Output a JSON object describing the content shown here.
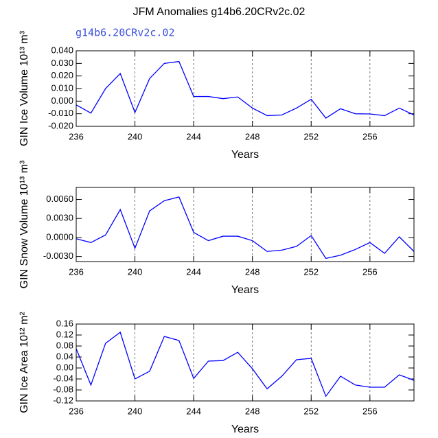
{
  "chart_data": [
    {
      "type": "line",
      "title": "JFM Anomalies g14b6.20CRv2c.02",
      "subtitle": "g14b6.20CRv2c.02",
      "xlabel": "Years",
      "ylabel": "GIN Ice Volume 10¹³ m³",
      "color": "#0000ff",
      "vgrid": true,
      "x": [
        236,
        237,
        238,
        239,
        240,
        241,
        242,
        243,
        244,
        245,
        246,
        247,
        248,
        249,
        250,
        251,
        252,
        253,
        254,
        255,
        256,
        257,
        258,
        259
      ],
      "values": [
        -0.003,
        -0.0095,
        0.01,
        0.022,
        -0.009,
        0.018,
        0.03,
        0.0315,
        0.0037,
        0.0037,
        0.002,
        0.0033,
        -0.0055,
        -0.0115,
        -0.011,
        -0.0055,
        0.0015,
        -0.0135,
        -0.006,
        -0.01,
        -0.0102,
        -0.0115,
        -0.0055,
        -0.011
      ],
      "xlim": [
        236,
        259
      ],
      "xticks": [
        236,
        240,
        244,
        248,
        252,
        256
      ],
      "ylim": [
        -0.02,
        0.04
      ],
      "yticks": [
        {
          "value": 0.04,
          "label": "0.040"
        },
        {
          "value": 0.03,
          "label": "0.030"
        },
        {
          "value": 0.02,
          "label": "0.020"
        },
        {
          "value": 0.01,
          "label": "0.010"
        },
        {
          "value": 0,
          "label": "0.000"
        },
        {
          "value": -0.01,
          "label": "-0.010"
        },
        {
          "value": -0.02,
          "label": "-0.020"
        }
      ]
    },
    {
      "type": "line",
      "xlabel": "Years",
      "ylabel": "GIN Snow Volume 10¹³ m³",
      "color": "#0000ff",
      "vgrid": true,
      "x": [
        236,
        237,
        238,
        239,
        240,
        241,
        242,
        243,
        244,
        245,
        246,
        247,
        248,
        249,
        250,
        251,
        252,
        253,
        254,
        255,
        256,
        257,
        258,
        259
      ],
      "values": [
        -0.0002,
        -0.0008,
        0.0004,
        0.0044,
        -0.0017,
        0.0042,
        0.0058,
        0.0064,
        0.0008,
        -0.0005,
        0.0002,
        0.0002,
        -0.0005,
        -0.0022,
        -0.002,
        -0.0014,
        0.0003,
        -0.0033,
        -0.0028,
        -0.0019,
        -0.0008,
        -0.0025,
        0.0001,
        -0.0022
      ],
      "xlim": [
        236,
        259
      ],
      "xticks": [
        236,
        240,
        244,
        248,
        252,
        256
      ],
      "ylim": [
        -0.0038,
        0.0079
      ],
      "yticks": [
        {
          "value": 0.006,
          "label": "0.0060"
        },
        {
          "value": 0.003,
          "label": "0.0030"
        },
        {
          "value": 0,
          "label": "0.0000"
        },
        {
          "value": -0.003,
          "label": "-0.0030"
        }
      ]
    },
    {
      "type": "line",
      "xlabel": "Years",
      "ylabel": "GIN Ice Area 10¹² m²",
      "color": "#0000ff",
      "vgrid": true,
      "x": [
        236,
        237,
        238,
        239,
        240,
        241,
        242,
        243,
        244,
        245,
        246,
        247,
        248,
        249,
        250,
        251,
        252,
        253,
        254,
        255,
        256,
        257,
        258,
        259
      ],
      "values": [
        0.07,
        -0.062,
        0.09,
        0.13,
        -0.04,
        -0.012,
        0.115,
        0.1,
        -0.038,
        0.025,
        0.027,
        0.057,
        -0.003,
        -0.076,
        -0.03,
        0.03,
        0.035,
        -0.103,
        -0.03,
        -0.062,
        -0.07,
        -0.07,
        -0.025,
        -0.045
      ],
      "xlim": [
        236,
        259
      ],
      "xticks": [
        236,
        240,
        244,
        248,
        252,
        256
      ],
      "ylim": [
        -0.12,
        0.16
      ],
      "yticks": [
        0.16,
        0.12,
        0.08,
        0.04,
        {
          "value": 0,
          "label": "0.00"
        },
        -0.04,
        -0.08,
        -0.12
      ]
    }
  ]
}
